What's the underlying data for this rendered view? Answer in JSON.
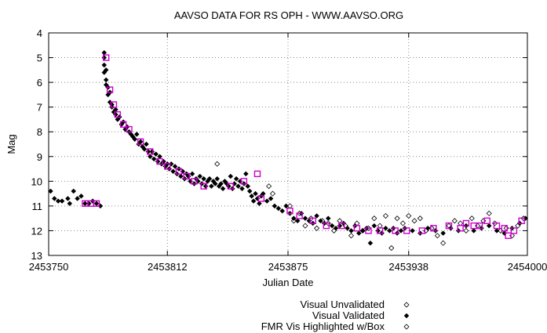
{
  "chart_data": {
    "type": "scatter",
    "title": "AAVSO DATA FOR RS OPH - WWW.AAVSO.ORG",
    "xlabel": "Julian Date",
    "ylabel": "Mag",
    "xlim": [
      2453750,
      2454000
    ],
    "ylim": [
      4,
      13
    ],
    "y_inverted": true,
    "xticks": [
      2453750,
      2453812,
      2453875,
      2453938,
      2454000
    ],
    "xtick_labels": [
      "2453750",
      "2453812",
      "2453875",
      "2453938",
      "2454000"
    ],
    "yticks": [
      4,
      5,
      6,
      7,
      8,
      9,
      10,
      11,
      12,
      13
    ],
    "grid": true,
    "legend_position": "bottom-right",
    "series": [
      {
        "name": "Visual Unvalidated",
        "marker": "open-diamond",
        "color": "#000000",
        "points": [
          [
            2453865,
            10.2
          ],
          [
            2453867,
            10.5
          ],
          [
            2453876,
            11.0
          ],
          [
            2453878,
            11.6
          ],
          [
            2453881,
            11.3
          ],
          [
            2453884,
            11.8
          ],
          [
            2453887,
            11.5
          ],
          [
            2453890,
            11.9
          ],
          [
            2453893,
            11.6
          ],
          [
            2453896,
            11.7
          ],
          [
            2453899,
            12.0
          ],
          [
            2453902,
            11.6
          ],
          [
            2453905,
            11.8
          ],
          [
            2453908,
            12.2
          ],
          [
            2453911,
            11.7
          ],
          [
            2453914,
            12.0
          ],
          [
            2453917,
            11.9
          ],
          [
            2453920,
            11.5
          ],
          [
            2453923,
            11.8
          ],
          [
            2453926,
            11.4
          ],
          [
            2453929,
            12.7
          ],
          [
            2453932,
            11.5
          ],
          [
            2453935,
            11.7
          ],
          [
            2453938,
            11.4
          ],
          [
            2453941,
            11.6
          ],
          [
            2453944,
            11.5
          ],
          [
            2453947,
            12.0
          ],
          [
            2453950,
            11.9
          ],
          [
            2453953,
            12.2
          ],
          [
            2453956,
            12.5
          ],
          [
            2453959,
            11.8
          ],
          [
            2453962,
            11.6
          ],
          [
            2453965,
            11.7
          ],
          [
            2453968,
            12.0
          ],
          [
            2453971,
            11.5
          ],
          [
            2453974,
            11.8
          ],
          [
            2453977,
            11.6
          ],
          [
            2453980,
            11.3
          ],
          [
            2453983,
            11.7
          ],
          [
            2453986,
            12.0
          ],
          [
            2453989,
            11.9
          ],
          [
            2453992,
            12.2
          ],
          [
            2453995,
            11.8
          ],
          [
            2453998,
            11.5
          ],
          [
            2453838,
            9.3
          ]
        ]
      },
      {
        "name": "Visual Validated",
        "marker": "filled-diamond",
        "color": "#000000",
        "points": [
          [
            2453751,
            10.4
          ],
          [
            2453753,
            10.7
          ],
          [
            2453755,
            10.8
          ],
          [
            2453757,
            10.8
          ],
          [
            2453760,
            10.7
          ],
          [
            2453761,
            10.9
          ],
          [
            2453763,
            10.4
          ],
          [
            2453765,
            10.7
          ],
          [
            2453767,
            10.6
          ],
          [
            2453769,
            10.9
          ],
          [
            2453771,
            10.9
          ],
          [
            2453773,
            10.8
          ],
          [
            2453775,
            10.9
          ],
          [
            2453777,
            11.0
          ],
          [
            2453779,
            4.8
          ],
          [
            2453779,
            5.0
          ],
          [
            2453779,
            5.3
          ],
          [
            2453779,
            5.6
          ],
          [
            2453780,
            5.5
          ],
          [
            2453780,
            5.9
          ],
          [
            2453780,
            6.1
          ],
          [
            2453781,
            6.2
          ],
          [
            2453781,
            6.5
          ],
          [
            2453782,
            6.4
          ],
          [
            2453782,
            6.8
          ],
          [
            2453783,
            6.9
          ],
          [
            2453783,
            7.0
          ],
          [
            2453784,
            7.2
          ],
          [
            2453785,
            7.3
          ],
          [
            2453785,
            7.1
          ],
          [
            2453786,
            7.5
          ],
          [
            2453787,
            7.4
          ],
          [
            2453788,
            7.7
          ],
          [
            2453789,
            7.6
          ],
          [
            2453790,
            7.9
          ],
          [
            2453791,
            7.8
          ],
          [
            2453792,
            8.0
          ],
          [
            2453793,
            8.1
          ],
          [
            2453794,
            8.2
          ],
          [
            2453795,
            8.3
          ],
          [
            2453796,
            8.1
          ],
          [
            2453797,
            8.5
          ],
          [
            2453798,
            8.4
          ],
          [
            2453799,
            8.6
          ],
          [
            2453800,
            8.7
          ],
          [
            2453801,
            8.5
          ],
          [
            2453802,
            8.8
          ],
          [
            2453803,
            9.0
          ],
          [
            2453804,
            8.8
          ],
          [
            2453805,
            9.1
          ],
          [
            2453806,
            8.9
          ],
          [
            2453807,
            9.2
          ],
          [
            2453808,
            9.0
          ],
          [
            2453809,
            9.3
          ],
          [
            2453810,
            9.2
          ],
          [
            2453811,
            9.4
          ],
          [
            2453812,
            9.3
          ],
          [
            2453813,
            9.5
          ],
          [
            2453814,
            9.3
          ],
          [
            2453815,
            9.6
          ],
          [
            2453816,
            9.4
          ],
          [
            2453817,
            9.7
          ],
          [
            2453818,
            9.5
          ],
          [
            2453819,
            9.8
          ],
          [
            2453820,
            9.6
          ],
          [
            2453821,
            9.9
          ],
          [
            2453822,
            9.7
          ],
          [
            2453823,
            9.8
          ],
          [
            2453824,
            10.0
          ],
          [
            2453825,
            9.7
          ],
          [
            2453826,
            10.1
          ],
          [
            2453827,
            9.9
          ],
          [
            2453828,
            10.0
          ],
          [
            2453829,
            9.8
          ],
          [
            2453830,
            10.1
          ],
          [
            2453831,
            9.9
          ],
          [
            2453832,
            10.2
          ],
          [
            2453833,
            10.0
          ],
          [
            2453834,
            9.9
          ],
          [
            2453835,
            10.2
          ],
          [
            2453836,
            10.0
          ],
          [
            2453837,
            10.1
          ],
          [
            2453838,
            9.9
          ],
          [
            2453839,
            10.2
          ],
          [
            2453840,
            10.1
          ],
          [
            2453841,
            10.3
          ],
          [
            2453842,
            10.0
          ],
          [
            2453843,
            10.1
          ],
          [
            2453844,
            10.2
          ],
          [
            2453845,
            9.8
          ],
          [
            2453846,
            10.3
          ],
          [
            2453847,
            10.1
          ],
          [
            2453848,
            9.9
          ],
          [
            2453849,
            10.2
          ],
          [
            2453850,
            10.0
          ],
          [
            2453851,
            10.3
          ],
          [
            2453852,
            10.1
          ],
          [
            2453853,
            9.7
          ],
          [
            2453854,
            10.2
          ],
          [
            2453855,
            10.4
          ],
          [
            2453856,
            10.6
          ],
          [
            2453857,
            10.8
          ],
          [
            2453858,
            10.5
          ],
          [
            2453859,
            10.7
          ],
          [
            2453860,
            10.9
          ],
          [
            2453861,
            10.6
          ],
          [
            2453862,
            10.5
          ],
          [
            2453864,
            10.8
          ],
          [
            2453866,
            10.7
          ],
          [
            2453868,
            11.0
          ],
          [
            2453870,
            11.1
          ],
          [
            2453872,
            11.2
          ],
          [
            2453874,
            11.0
          ],
          [
            2453876,
            11.3
          ],
          [
            2453878,
            11.5
          ],
          [
            2453880,
            11.6
          ],
          [
            2453882,
            11.3
          ],
          [
            2453884,
            11.5
          ],
          [
            2453886,
            11.6
          ],
          [
            2453888,
            11.7
          ],
          [
            2453890,
            11.4
          ],
          [
            2453892,
            11.6
          ],
          [
            2453894,
            11.7
          ],
          [
            2453896,
            11.5
          ],
          [
            2453898,
            11.8
          ],
          [
            2453900,
            11.9
          ],
          [
            2453902,
            11.8
          ],
          [
            2453904,
            11.7
          ],
          [
            2453906,
            11.9
          ],
          [
            2453908,
            12.0
          ],
          [
            2453910,
            11.8
          ],
          [
            2453912,
            12.1
          ],
          [
            2453914,
            12.0
          ],
          [
            2453916,
            11.9
          ],
          [
            2453918,
            12.5
          ],
          [
            2453920,
            11.8
          ],
          [
            2453922,
            12.0
          ],
          [
            2453924,
            12.1
          ],
          [
            2453926,
            11.9
          ],
          [
            2453928,
            12.0
          ],
          [
            2453930,
            11.9
          ],
          [
            2453932,
            12.1
          ],
          [
            2453934,
            12.0
          ],
          [
            2453936,
            11.9
          ],
          [
            2453940,
            12.0
          ],
          [
            2453944,
            12.1
          ],
          [
            2453948,
            11.9
          ],
          [
            2453952,
            12.0
          ],
          [
            2453956,
            12.1
          ],
          [
            2453960,
            11.9
          ],
          [
            2453964,
            12.0
          ],
          [
            2453968,
            11.8
          ],
          [
            2453972,
            12.0
          ],
          [
            2453976,
            11.9
          ],
          [
            2453980,
            11.8
          ],
          [
            2453984,
            12.0
          ],
          [
            2453988,
            12.1
          ],
          [
            2453992,
            11.9
          ],
          [
            2453996,
            11.7
          ],
          [
            2453999,
            11.5
          ]
        ]
      },
      {
        "name": "FMR Vis Highlighted w/Box",
        "marker": "magenta-box",
        "color": "#cc00cc",
        "points": [
          [
            2453769,
            10.9
          ],
          [
            2453772,
            10.9
          ],
          [
            2453775,
            10.9
          ],
          [
            2453780,
            5.0
          ],
          [
            2453782,
            6.3
          ],
          [
            2453784,
            6.9
          ],
          [
            2453786,
            7.3
          ],
          [
            2453789,
            7.7
          ],
          [
            2453792,
            7.9
          ],
          [
            2453798,
            8.4
          ],
          [
            2453803,
            8.8
          ],
          [
            2453808,
            9.2
          ],
          [
            2453812,
            9.4
          ],
          [
            2453818,
            9.6
          ],
          [
            2453822,
            9.8
          ],
          [
            2453826,
            10.0
          ],
          [
            2453831,
            10.2
          ],
          [
            2453845,
            10.2
          ],
          [
            2453852,
            10.0
          ],
          [
            2453859,
            9.7
          ],
          [
            2453861,
            10.7
          ],
          [
            2453876,
            11.2
          ],
          [
            2453881,
            11.4
          ],
          [
            2453888,
            11.6
          ],
          [
            2453895,
            11.8
          ],
          [
            2453903,
            11.8
          ],
          [
            2453911,
            11.9
          ],
          [
            2453917,
            12.0
          ],
          [
            2453923,
            12.0
          ],
          [
            2453931,
            12.0
          ],
          [
            2453937,
            12.0
          ],
          [
            2453945,
            12.0
          ],
          [
            2453951,
            11.9
          ],
          [
            2453959,
            11.8
          ],
          [
            2453965,
            11.9
          ],
          [
            2453968,
            11.7
          ],
          [
            2453972,
            11.8
          ],
          [
            2453975,
            11.8
          ],
          [
            2453979,
            11.6
          ],
          [
            2453984,
            11.8
          ],
          [
            2453988,
            11.9
          ],
          [
            2453990,
            12.2
          ],
          [
            2453993,
            12.0
          ],
          [
            2453997,
            11.6
          ]
        ]
      }
    ]
  }
}
